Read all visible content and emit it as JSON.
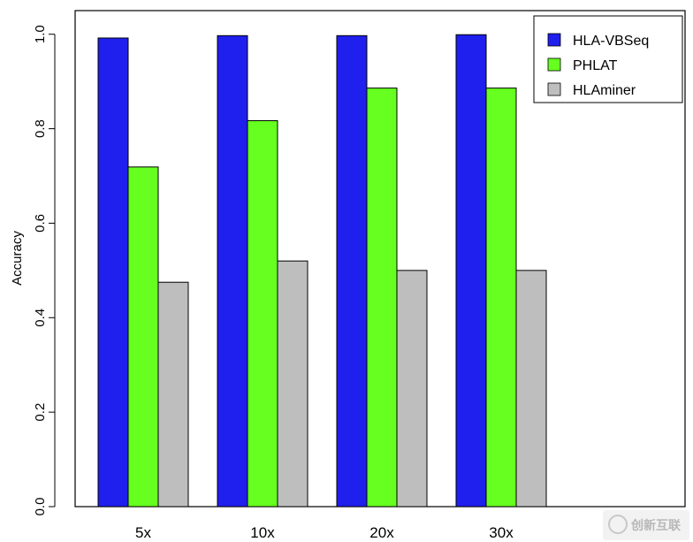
{
  "chart_data": {
    "type": "bar",
    "categories": [
      "5x",
      "10x",
      "20x",
      "30x"
    ],
    "series": [
      {
        "name": "HLA-VBSeq",
        "color": "#1f1fee",
        "values": [
          0.992,
          0.997,
          0.997,
          0.999
        ]
      },
      {
        "name": "PHLAT",
        "color": "#66ff1f",
        "values": [
          0.719,
          0.817,
          0.886,
          0.886
        ]
      },
      {
        "name": "HLAminer",
        "color": "#bebebe",
        "values": [
          0.475,
          0.52,
          0.5,
          0.5
        ]
      }
    ],
    "ylabel": "Accuracy",
    "ylim": [
      0,
      1.05
    ],
    "yticks": [
      "0.0",
      "0.2",
      "0.4",
      "0.6",
      "0.8",
      "1.0"
    ],
    "legend_position": "top-right",
    "grid": false
  },
  "watermark": {
    "text": "创新互联",
    "icon": "watermark-logo-icon"
  }
}
